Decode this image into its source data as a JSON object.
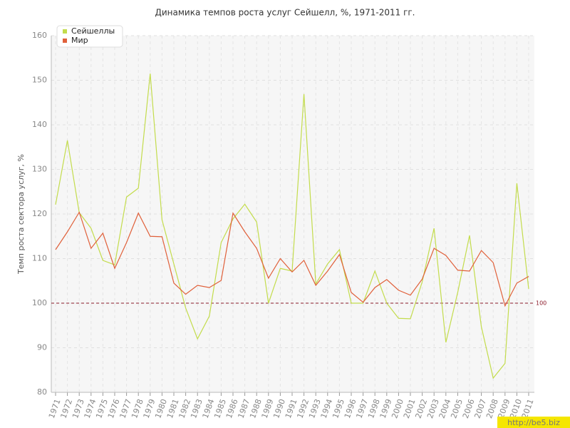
{
  "chart_data": {
    "type": "line",
    "title": "Динамика темпов роста услуг Сейшелл, %, 1971-2011 гг.",
    "y_label": "Темп роста сектора услуг, %",
    "categories": [
      "1971",
      "1972",
      "1973",
      "1974",
      "1975",
      "1976",
      "1977",
      "1978",
      "1979",
      "1980",
      "1981",
      "1982",
      "1983",
      "1984",
      "1985",
      "1986",
      "1987",
      "1988",
      "1989",
      "1990",
      "1991",
      "1992",
      "1993",
      "1994",
      "1995",
      "1996",
      "1997",
      "1998",
      "1999",
      "2000",
      "2001",
      "2002",
      "2003",
      "2004",
      "2005",
      "2006",
      "2007",
      "2008",
      "2009",
      "2010",
      "2011"
    ],
    "series": [
      {
        "name": "Сейшеллы",
        "color": "#c3dc4c",
        "values": [
          122.1,
          136.5,
          120.3,
          116.8,
          109.6,
          108.6,
          123.8,
          125.8,
          151.5,
          118.7,
          108.8,
          98.9,
          92,
          97.1,
          113.6,
          118.9,
          122.2,
          118.2,
          100,
          107.8,
          107.2,
          146.9,
          104.3,
          108.8,
          112,
          100,
          100,
          107.2,
          100,
          96.6,
          96.5,
          104.8,
          116.8,
          91.2,
          102.4,
          115.2,
          94.7,
          83.2,
          86.5,
          126.9,
          103.2
        ]
      },
      {
        "name": "Мир",
        "color": "#e0603a",
        "values": [
          112,
          116,
          120.4,
          112.3,
          115.7,
          107.8,
          113.6,
          120.2,
          115,
          114.9,
          104.5,
          102,
          104,
          103.5,
          105.1,
          120.2,
          116,
          112.3,
          105.6,
          110,
          107,
          109.6,
          104,
          107.2,
          110.9,
          102.4,
          100.2,
          103.5,
          105.3,
          102.9,
          101.8,
          105.4,
          112.3,
          110.7,
          107.4,
          107.2,
          111.8,
          109.1,
          99.4,
          104.5,
          106
        ]
      }
    ],
    "reference": 100,
    "reference_color": "#8b1a2a",
    "ylim": [
      80,
      160
    ],
    "yticks": [
      80,
      90,
      100,
      110,
      120,
      130,
      140,
      150,
      160
    ],
    "grid": true,
    "legend": "top-left",
    "watermark": "http://be5.biz"
  }
}
